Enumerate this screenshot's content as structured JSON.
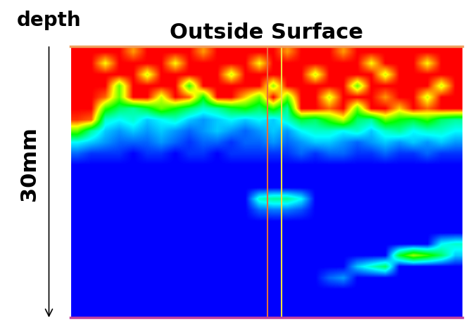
{
  "chart_data": {
    "type": "heatmap",
    "title": "Outside Surface",
    "annotations": [
      "depth",
      "30mm"
    ],
    "tick_labels": false,
    "xlim": [
      0,
      28
    ],
    "ylim": [
      30,
      0
    ],
    "color_range": [
      0,
      100
    ],
    "cursors": [
      {
        "x": 14.07,
        "color": "#e8703a"
      },
      {
        "x": 15.08,
        "color": "#f0e040"
      }
    ],
    "cells": [
      [
        100,
        100,
        100,
        100,
        85,
        100,
        100,
        100,
        100,
        85,
        100,
        100,
        100,
        100,
        100,
        85,
        100,
        100,
        100,
        85,
        100,
        100,
        100,
        100,
        100,
        100,
        100,
        100
      ],
      [
        100,
        100,
        75,
        100,
        100,
        100,
        100,
        75,
        100,
        100,
        100,
        100,
        100,
        75,
        100,
        100,
        100,
        100,
        100,
        100,
        100,
        75,
        100,
        100,
        100,
        75,
        100,
        100
      ],
      [
        100,
        100,
        100,
        100,
        100,
        70,
        100,
        100,
        100,
        100,
        100,
        70,
        100,
        100,
        100,
        100,
        100,
        70,
        100,
        100,
        100,
        100,
        70,
        100,
        100,
        100,
        100,
        100
      ],
      [
        100,
        100,
        100,
        60,
        100,
        100,
        100,
        100,
        55,
        100,
        100,
        100,
        100,
        100,
        65,
        100,
        100,
        100,
        100,
        100,
        60,
        100,
        100,
        100,
        100,
        100,
        70,
        100
      ],
      [
        100,
        100,
        90,
        60,
        100,
        100,
        70,
        100,
        90,
        50,
        100,
        100,
        80,
        60,
        100,
        60,
        100,
        100,
        70,
        100,
        100,
        100,
        85,
        100,
        100,
        70,
        100,
        100
      ],
      [
        100,
        100,
        55,
        40,
        35,
        45,
        60,
        50,
        40,
        30,
        35,
        45,
        50,
        40,
        55,
        35,
        100,
        100,
        90,
        100,
        60,
        100,
        100,
        80,
        100,
        90,
        100,
        100
      ],
      [
        95,
        90,
        30,
        25,
        30,
        20,
        25,
        30,
        20,
        15,
        20,
        25,
        20,
        25,
        20,
        30,
        45,
        40,
        55,
        70,
        40,
        35,
        60,
        50,
        45,
        55,
        40,
        35
      ],
      [
        60,
        35,
        20,
        15,
        20,
        15,
        20,
        15,
        10,
        15,
        20,
        15,
        10,
        15,
        20,
        15,
        25,
        30,
        30,
        25,
        30,
        20,
        30,
        35,
        25,
        30,
        30,
        25
      ],
      [
        25,
        20,
        15,
        10,
        10,
        10,
        15,
        10,
        5,
        10,
        10,
        5,
        10,
        10,
        15,
        10,
        15,
        20,
        20,
        15,
        10,
        15,
        20,
        15,
        20,
        15,
        20,
        15
      ],
      [
        10,
        5,
        5,
        5,
        0,
        5,
        5,
        0,
        5,
        5,
        0,
        5,
        5,
        5,
        5,
        5,
        10,
        5,
        10,
        10,
        5,
        5,
        10,
        5,
        5,
        10,
        5,
        5
      ],
      [
        0,
        0,
        0,
        0,
        0,
        0,
        0,
        0,
        0,
        0,
        0,
        0,
        0,
        0,
        0,
        0,
        0,
        0,
        0,
        0,
        0,
        0,
        0,
        0,
        0,
        0,
        0,
        0
      ],
      [
        0,
        0,
        0,
        0,
        0,
        0,
        0,
        0,
        0,
        0,
        0,
        0,
        0,
        0,
        0,
        0,
        0,
        0,
        0,
        0,
        0,
        0,
        0,
        0,
        0,
        0,
        0,
        0
      ],
      [
        0,
        0,
        0,
        0,
        0,
        0,
        0,
        0,
        0,
        0,
        0,
        0,
        0,
        0,
        0,
        0,
        0,
        0,
        0,
        0,
        0,
        0,
        0,
        0,
        0,
        0,
        0,
        0
      ],
      [
        0,
        0,
        0,
        0,
        0,
        0,
        0,
        0,
        0,
        0,
        0,
        0,
        0,
        30,
        35,
        35,
        25,
        0,
        0,
        0,
        0,
        0,
        0,
        0,
        0,
        0,
        0,
        0
      ],
      [
        0,
        0,
        0,
        0,
        0,
        0,
        0,
        0,
        0,
        0,
        0,
        0,
        0,
        10,
        12,
        12,
        8,
        0,
        0,
        0,
        0,
        0,
        0,
        0,
        0,
        0,
        0,
        0
      ],
      [
        0,
        0,
        0,
        0,
        0,
        0,
        0,
        0,
        0,
        0,
        0,
        0,
        0,
        0,
        0,
        0,
        0,
        0,
        0,
        0,
        0,
        0,
        0,
        0,
        0,
        0,
        0,
        0
      ],
      [
        0,
        0,
        0,
        0,
        0,
        0,
        0,
        0,
        0,
        0,
        0,
        0,
        0,
        0,
        0,
        0,
        0,
        0,
        0,
        0,
        0,
        0,
        0,
        0,
        0,
        0,
        0,
        0
      ],
      [
        0,
        0,
        0,
        0,
        0,
        0,
        0,
        0,
        0,
        0,
        0,
        0,
        0,
        0,
        0,
        0,
        0,
        0,
        0,
        0,
        0,
        0,
        0,
        0,
        0,
        0,
        25,
        30
      ],
      [
        0,
        0,
        0,
        0,
        0,
        0,
        0,
        0,
        0,
        0,
        0,
        0,
        0,
        0,
        0,
        0,
        0,
        0,
        0,
        0,
        0,
        0,
        0,
        45,
        65,
        55,
        40,
        20
      ],
      [
        0,
        0,
        0,
        0,
        0,
        0,
        0,
        0,
        0,
        0,
        0,
        0,
        0,
        0,
        0,
        0,
        0,
        0,
        0,
        0,
        20,
        30,
        40,
        0,
        0,
        0,
        0,
        0
      ],
      [
        0,
        0,
        0,
        0,
        0,
        0,
        0,
        0,
        0,
        0,
        0,
        0,
        0,
        0,
        0,
        0,
        0,
        0,
        10,
        15,
        0,
        0,
        0,
        0,
        0,
        0,
        0,
        0
      ],
      [
        0,
        0,
        0,
        0,
        0,
        0,
        0,
        0,
        0,
        0,
        0,
        0,
        0,
        0,
        0,
        0,
        0,
        0,
        0,
        0,
        0,
        0,
        0,
        0,
        0,
        0,
        0,
        0
      ],
      [
        0,
        0,
        0,
        0,
        0,
        0,
        0,
        0,
        0,
        0,
        0,
        0,
        0,
        0,
        0,
        0,
        0,
        0,
        0,
        0,
        0,
        0,
        0,
        0,
        0,
        0,
        0,
        0
      ],
      [
        0,
        0,
        0,
        0,
        0,
        0,
        0,
        0,
        0,
        0,
        0,
        0,
        0,
        0,
        0,
        0,
        0,
        0,
        0,
        0,
        0,
        0,
        0,
        0,
        0,
        0,
        0,
        0
      ]
    ]
  }
}
